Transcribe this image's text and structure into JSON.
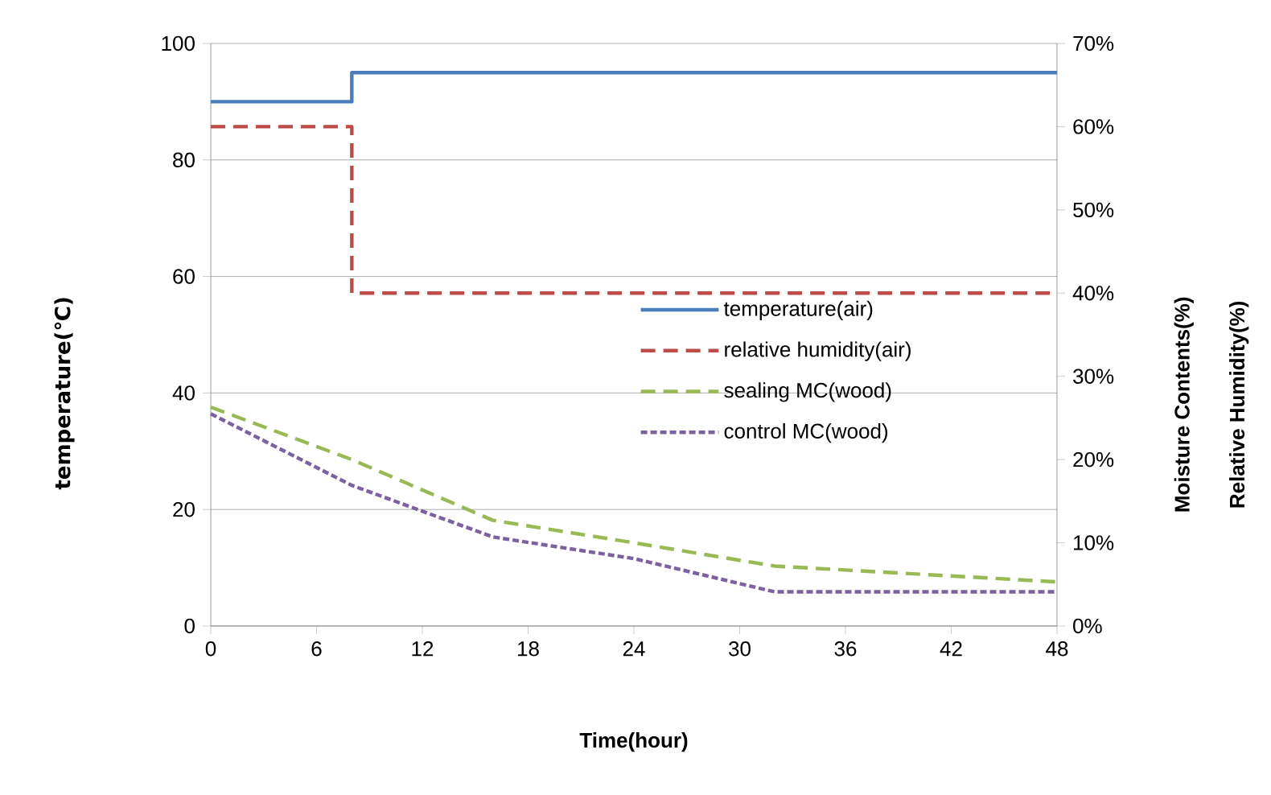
{
  "chart_data": {
    "type": "line",
    "xlabel": "Time(hour)",
    "ylabel": "temperature(℃)",
    "y2label": "Moisture Contents(%)",
    "annotations": [
      "Relative Humidity(%)"
    ],
    "xlim": [
      0,
      48
    ],
    "xticks": [
      0,
      6,
      12,
      18,
      24,
      30,
      36,
      42,
      48
    ],
    "ylim": [
      0,
      100
    ],
    "yticks": [
      0,
      20,
      40,
      60,
      80,
      100
    ],
    "y2lim": [
      0,
      70
    ],
    "y2ticks": [
      {
        "value": 0,
        "label": "0%"
      },
      {
        "value": 10,
        "label": "10%"
      },
      {
        "value": 20,
        "label": "20%"
      },
      {
        "value": 30,
        "label": "30%"
      },
      {
        "value": 40,
        "label": "40%"
      },
      {
        "value": 50,
        "label": "50%"
      },
      {
        "value": 60,
        "label": "60%"
      },
      {
        "value": 70,
        "label": "70%"
      }
    ],
    "grid": "y",
    "legend": "right",
    "series": [
      {
        "name": "temperature(air)",
        "color": "#4a7ebb",
        "line_style": "solid",
        "x": [
          0,
          8,
          8,
          48
        ],
        "values": [
          90,
          90,
          95,
          95
        ]
      },
      {
        "name": "relative humidity(air)",
        "color": "#be4b48",
        "line_style": "dashed",
        "axis": "y2",
        "x": [
          0,
          8,
          8,
          48
        ],
        "values": [
          60,
          60,
          40,
          40
        ]
      },
      {
        "name": "sealing MC(wood)",
        "color": "#98b954",
        "line_style": "dashed",
        "axis": "y2",
        "x": [
          0,
          8,
          16,
          24,
          32,
          48
        ],
        "values": [
          26.3,
          20.0,
          12.7,
          10.0,
          7.2,
          5.3
        ]
      },
      {
        "name": "control MC(wood)",
        "color": "#7d60a0",
        "line_style": "dotted",
        "axis": "y2",
        "x": [
          0,
          8,
          16,
          24,
          32,
          48
        ],
        "values": [
          25.5,
          16.9,
          10.7,
          8.1,
          4.1,
          4.1
        ]
      }
    ]
  }
}
